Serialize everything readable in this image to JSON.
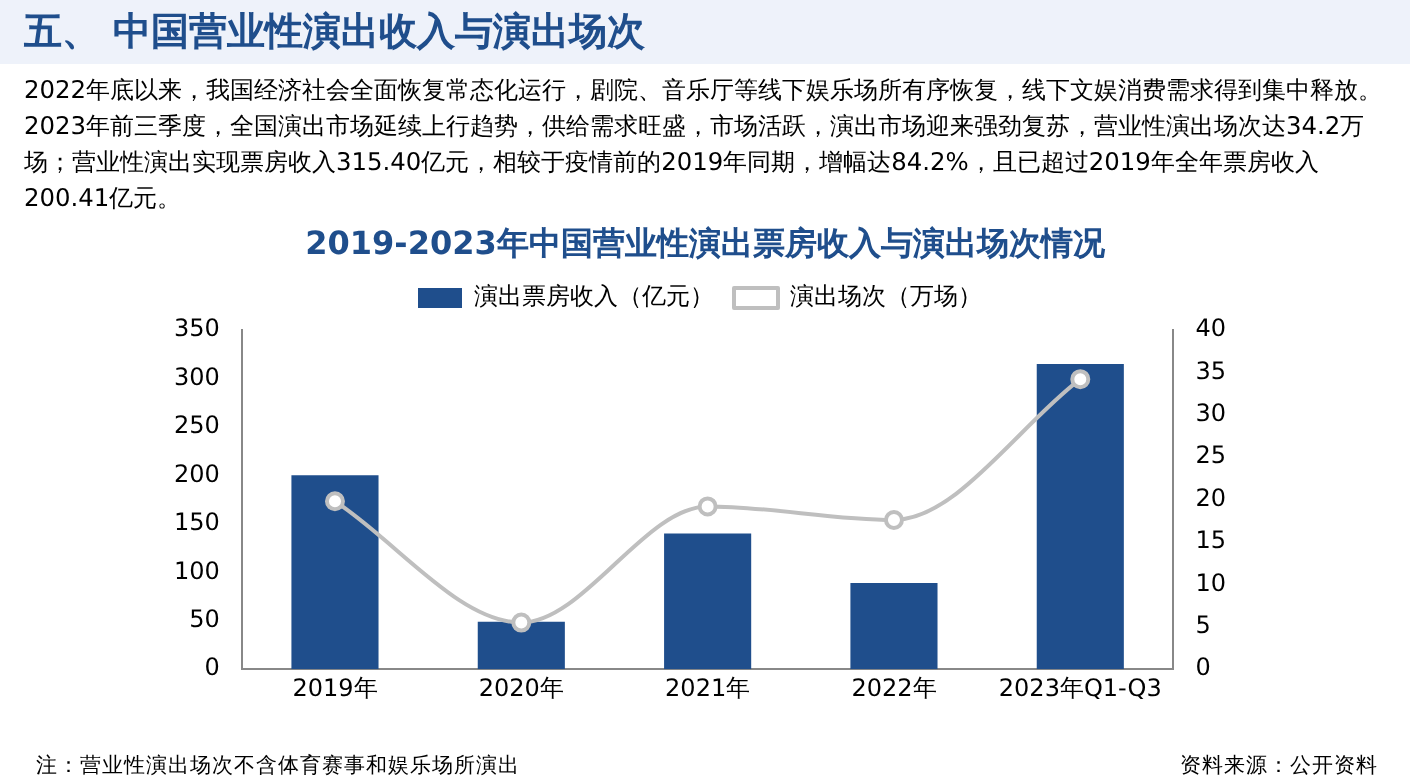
{
  "chart_data": {
    "type": "bar",
    "title": "2019-2023年中国营业性演出票房收入与演出场次情况",
    "categories": [
      "2019年",
      "2020年",
      "2021年",
      "2022年",
      "2023年Q1-Q3"
    ],
    "series": [
      {
        "name": "演出票房收入（亿元）",
        "color": "#1f4e8c",
        "values": [
          200,
          49,
          140,
          89,
          315
        ]
      },
      {
        "name": "演出场次（万场）",
        "type": "line",
        "axis": "y2",
        "color": "#bfbfbf",
        "values": [
          19.8,
          5.5,
          19.2,
          17.6,
          34.2
        ]
      }
    ],
    "ylim": [
      0,
      350
    ],
    "yticks": [
      0,
      50,
      100,
      150,
      200,
      250,
      300,
      350
    ],
    "y2lim": [
      0,
      40
    ],
    "y2ticks": [
      0,
      5,
      10,
      15,
      20,
      25,
      30,
      35,
      40
    ],
    "marker": "circle",
    "legend": "top",
    "grid": false,
    "annotations": [
      "五、 中国营业性演出收入与演出场次",
      "2022年底以来，我国经济社会全面恢复常态化运行，剧院、音乐厅等线下娱乐场所有序恢复，线下文娱消费需求得到集中释放。2023年前三季度，全国演出市场延续上行趋势，供给需求旺盛，市场活跃，演出市场迎来强劲复苏，营业性演出场次达34.2万场；营业性演出实现票房收入315.40亿元，相较于疫情前的2019年同期，增幅达84.2%，且已超过2019年全年票房收入200.41亿元。",
      "注：营业性演出场次不含体育赛事和娱乐场所演出",
      "资料来源：公开资料"
    ]
  }
}
